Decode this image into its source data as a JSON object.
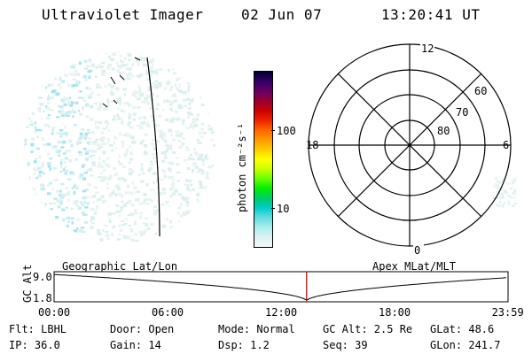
{
  "header": {
    "instrument": "Ultraviolet Imager",
    "date": "02 Jun 07",
    "time": "13:20:41 UT"
  },
  "colorbar": {
    "unit_label": "photon cm⁻²s⁻¹",
    "tick_labels": [
      "100",
      "10"
    ],
    "colors": [
      "#000033",
      "#330066",
      "#660066",
      "#990033",
      "#cc0000",
      "#ee2200",
      "#ff6600",
      "#ff9900",
      "#ffcc00",
      "#ffff00",
      "#ccff00",
      "#66ff00",
      "#00ee00",
      "#00cc66",
      "#00cccc",
      "#66dddd",
      "#aaeeee",
      "#ddf2f2",
      "#f2f8f8"
    ]
  },
  "polar": {
    "mlt_labels": {
      "top": "12",
      "bottom": "0",
      "left": "18",
      "right": "6"
    },
    "lat_labels": [
      "60",
      "70",
      "80"
    ]
  },
  "timeline": {
    "left_title": "Geographic Lat/Lon",
    "right_title": "Apex MLat/MLT",
    "y_axis_label": "GC Alt",
    "y_ticks": [
      "9.0",
      "1.8"
    ],
    "x_ticks": [
      "00:00",
      "06:00",
      "12:00",
      "18:00",
      "23:59"
    ],
    "current_marker_hours": 13.35
  },
  "info": {
    "flt": "Flt: LBHL",
    "ip": "IP: 36.0",
    "door": "Door: Open",
    "gain": "Gain: 14",
    "mode": "Mode: Normal",
    "dsp": "Dsp:    1.2",
    "gc_alt": "GC Alt: 2.5 Re",
    "seq": "Seq: 39",
    "glat": "GLat:  48.6",
    "glon": "GLon: 241.7"
  }
}
